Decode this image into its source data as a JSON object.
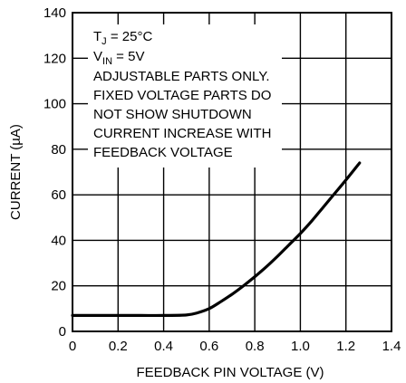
{
  "chart_data": {
    "type": "line",
    "xlabel": "FEEDBACK PIN VOLTAGE (V)",
    "ylabel": "CURRENT (µA)",
    "xlim": [
      0,
      1.4
    ],
    "ylim": [
      0,
      140
    ],
    "x_ticks": [
      "0",
      "0.2",
      "0.4",
      "0.6",
      "0.8",
      "1.0",
      "1.2",
      "1.4"
    ],
    "y_ticks": [
      "0",
      "20",
      "40",
      "60",
      "80",
      "100",
      "120",
      "140"
    ],
    "grid": true,
    "series": [
      {
        "x": [
          0,
          0.1,
          0.2,
          0.3,
          0.4,
          0.5,
          0.55,
          0.6,
          0.65,
          0.7,
          0.75,
          0.8,
          0.85,
          0.9,
          0.95,
          1.0,
          1.05,
          1.1,
          1.15,
          1.2,
          1.26
        ],
        "y": [
          7,
          7,
          7,
          7,
          7,
          7.2,
          8.2,
          10,
          13,
          16.3,
          20,
          24,
          28.3,
          33,
          38,
          43,
          48.5,
          54.5,
          60.5,
          66.5,
          74
        ]
      }
    ],
    "annotation": {
      "line1_main": "T",
      "line1_sub": "J",
      "line1_rest": " = 25°C",
      "line2_main": "V",
      "line2_sub": "IN",
      "line2_rest": " = 5V",
      "lines": [
        "ADJUSTABLE PARTS ONLY.",
        "FIXED VOLTAGE PARTS DO",
        "NOT SHOW SHUTDOWN",
        "CURRENT INCREASE WITH",
        "FEEDBACK VOLTAGE"
      ]
    },
    "colors": {
      "line": "#000000",
      "grid": "#000000",
      "background": "#ffffff"
    }
  }
}
